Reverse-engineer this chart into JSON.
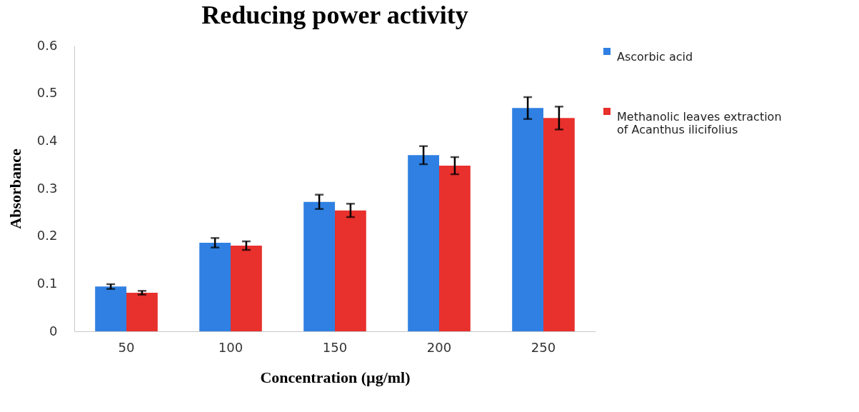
{
  "chart_data": {
    "type": "bar",
    "title": "Reducing power activity",
    "xlabel": "Concentration (µg/ml)",
    "ylabel": "Absorbance",
    "categories": [
      "50",
      "100",
      "150",
      "200",
      "250"
    ],
    "series": [
      {
        "name": "Ascorbic acid",
        "color": "#2f80e2",
        "values": [
          0.094,
          0.186,
          0.272,
          0.37,
          0.469
        ],
        "errors": [
          0.005,
          0.01,
          0.015,
          0.019,
          0.023
        ]
      },
      {
        "name": "Methanolic leaves extraction of Acanthus ilicifolius",
        "color": "#e8302c",
        "values": [
          0.081,
          0.18,
          0.254,
          0.348,
          0.448
        ],
        "errors": [
          0.004,
          0.009,
          0.014,
          0.018,
          0.024
        ]
      }
    ],
    "ylim": [
      0,
      0.6
    ],
    "yticks": [
      0,
      0.1,
      0.2,
      0.3,
      0.4,
      0.5,
      0.6
    ],
    "legend": "right"
  }
}
